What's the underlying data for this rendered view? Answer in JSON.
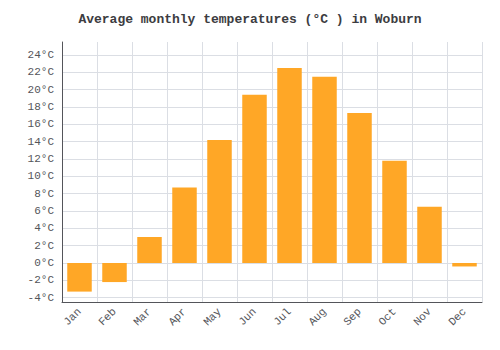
{
  "chart_data": {
    "type": "bar",
    "title": "Average monthly temperatures (°C ) in Woburn",
    "categories": [
      "Jan",
      "Feb",
      "Mar",
      "Apr",
      "May",
      "Jun",
      "Jul",
      "Aug",
      "Sep",
      "Oct",
      "Nov",
      "Dec"
    ],
    "values": [
      -3.3,
      -2.2,
      3.0,
      8.7,
      14.2,
      19.4,
      22.5,
      21.5,
      17.3,
      11.8,
      6.5,
      -0.4
    ],
    "color": "#FFA726",
    "ylim": [
      -4.5,
      25.5
    ],
    "yticks": [
      {
        "value": -4,
        "label": "-4°C"
      },
      {
        "value": -2,
        "label": "-2°C"
      },
      {
        "value": 0,
        "label": "0°C"
      },
      {
        "value": 2,
        "label": "2°C"
      },
      {
        "value": 4,
        "label": "4°C"
      },
      {
        "value": 6,
        "label": "6°C"
      },
      {
        "value": 8,
        "label": "8°C"
      },
      {
        "value": 10,
        "label": "10°C"
      },
      {
        "value": 12,
        "label": "12°C"
      },
      {
        "value": 14,
        "label": "14°C"
      },
      {
        "value": 16,
        "label": "16°C"
      },
      {
        "value": 18,
        "label": "18°C"
      },
      {
        "value": 20,
        "label": "20°C"
      },
      {
        "value": 22,
        "label": "22°C"
      },
      {
        "value": 24,
        "label": "24°C"
      }
    ],
    "grid": true
  }
}
